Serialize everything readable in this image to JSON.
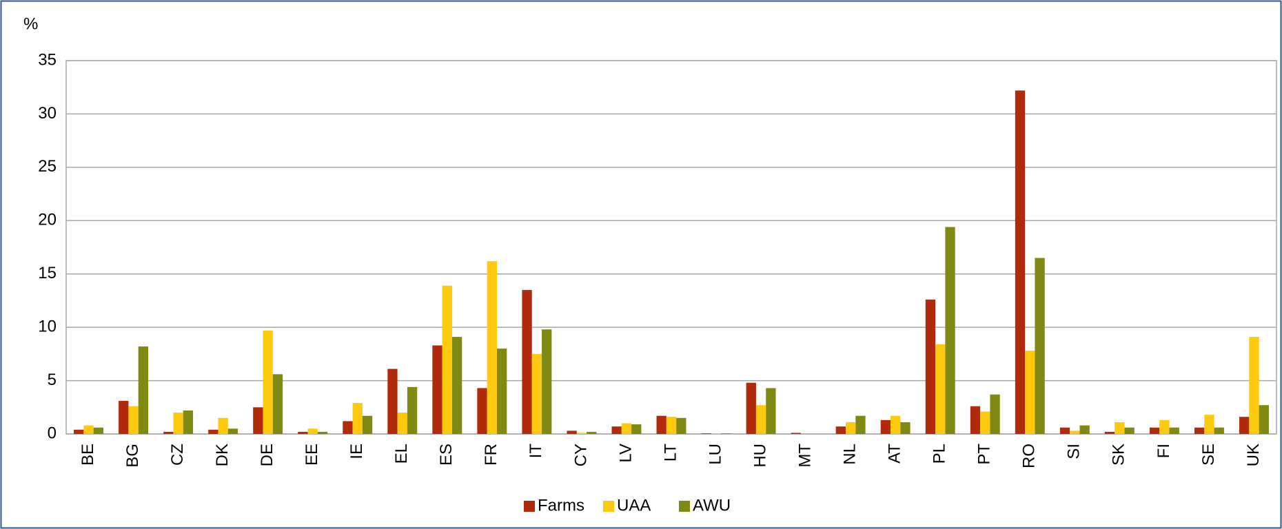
{
  "chart_data": {
    "type": "bar",
    "ylabel": "%",
    "categories": [
      "BE",
      "BG",
      "CZ",
      "DK",
      "DE",
      "EE",
      "IE",
      "EL",
      "ES",
      "FR",
      "IT",
      "CY",
      "LV",
      "LT",
      "LU",
      "HU",
      "MT",
      "NL",
      "AT",
      "PL",
      "PT",
      "RO",
      "SI",
      "SK",
      "FI",
      "SE",
      "UK"
    ],
    "series": [
      {
        "name": "Farms",
        "color": "#b22a0c",
        "values": [
          0.4,
          3.1,
          0.2,
          0.4,
          2.5,
          0.2,
          1.2,
          6.1,
          8.3,
          4.3,
          13.5,
          0.3,
          0.7,
          1.7,
          0.05,
          4.8,
          0.1,
          0.7,
          1.3,
          12.6,
          2.6,
          32.2,
          0.6,
          0.2,
          0.6,
          0.6,
          1.6
        ]
      },
      {
        "name": "UAA",
        "color": "#ffc90e",
        "values": [
          0.8,
          2.6,
          2.0,
          1.5,
          9.7,
          0.5,
          2.9,
          2.0,
          13.9,
          16.2,
          7.5,
          0.1,
          1.0,
          1.6,
          0.05,
          2.7,
          0,
          1.1,
          1.7,
          8.4,
          2.1,
          7.8,
          0.3,
          1.1,
          1.3,
          1.8,
          9.1
        ]
      },
      {
        "name": "AWU",
        "color": "#808a12",
        "values": [
          0.6,
          8.2,
          2.2,
          0.5,
          5.6,
          0.2,
          1.7,
          4.4,
          9.1,
          8.0,
          9.8,
          0.2,
          0.9,
          1.5,
          0.05,
          4.3,
          0,
          1.7,
          1.1,
          19.4,
          3.7,
          16.5,
          0.8,
          0.6,
          0.6,
          0.6,
          2.7
        ]
      }
    ],
    "ylim": [
      0,
      35
    ],
    "yticks": [
      0,
      5,
      10,
      15,
      20,
      25,
      30,
      35
    ],
    "grid": true,
    "legend": "bottom"
  }
}
